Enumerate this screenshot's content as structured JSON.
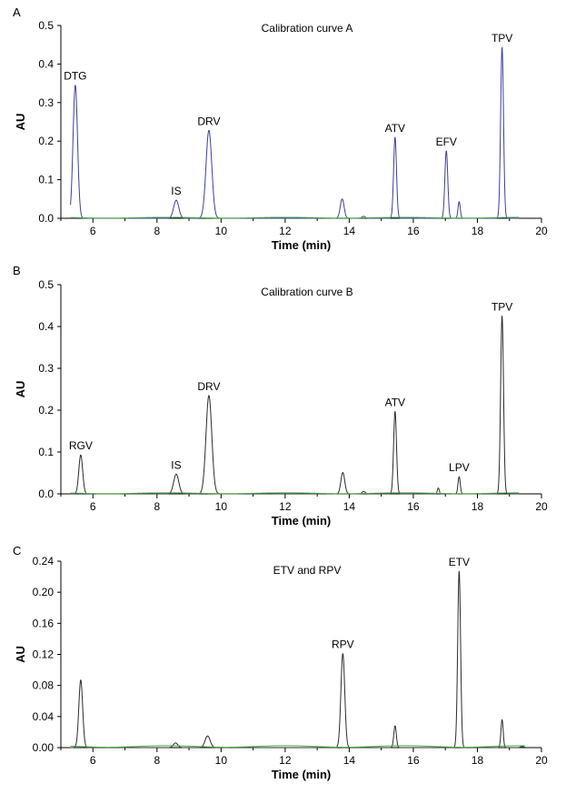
{
  "chart_data": [
    {
      "type": "line",
      "panel": "A",
      "title": "Calibration curve  A",
      "xlabel": "Time (min)",
      "ylabel": "AU",
      "xlim": [
        5,
        20
      ],
      "ylim": [
        0,
        0.5
      ],
      "xticks": [
        6,
        8,
        10,
        12,
        14,
        16,
        18,
        20
      ],
      "yticks": [
        0.0,
        0.1,
        0.2,
        0.3,
        0.4,
        0.5
      ],
      "ytick_labels": [
        "0.0",
        "0.1",
        "0.2",
        "0.3",
        "0.4",
        "0.5"
      ],
      "grid": false,
      "trace_end": 19.3,
      "peaks": [
        {
          "label": "DTG",
          "x": 5.45,
          "y": 0.345,
          "w": 0.07
        },
        {
          "label": "IS",
          "x": 8.6,
          "y": 0.047,
          "w": 0.08
        },
        {
          "label": "DRV",
          "x": 9.62,
          "y": 0.228,
          "w": 0.09
        },
        {
          "label": "",
          "x": 13.78,
          "y": 0.05,
          "w": 0.06
        },
        {
          "label": "",
          "x": 14.45,
          "y": 0.005,
          "w": 0.05
        },
        {
          "label": "ATV",
          "x": 15.43,
          "y": 0.21,
          "w": 0.045
        },
        {
          "label": "EFV",
          "x": 17.03,
          "y": 0.175,
          "w": 0.045
        },
        {
          "label": "",
          "x": 17.43,
          "y": 0.043,
          "w": 0.035
        },
        {
          "label": "TPV",
          "x": 18.77,
          "y": 0.443,
          "w": 0.045
        }
      ],
      "series": [
        {
          "color": "#3d3d9e"
        },
        {
          "color": "#4aa84a",
          "baseline": true
        }
      ]
    },
    {
      "type": "line",
      "panel": "B",
      "title": "Calibration curve  B",
      "xlabel": "Time (min)",
      "ylabel": "AU",
      "xlim": [
        5,
        20
      ],
      "ylim": [
        0,
        0.5
      ],
      "xticks": [
        6,
        8,
        10,
        12,
        14,
        16,
        18,
        20
      ],
      "yticks": [
        0.0,
        0.1,
        0.2,
        0.3,
        0.4,
        0.5
      ],
      "ytick_labels": [
        "0.0",
        "0.1",
        "0.2",
        "0.3",
        "0.4",
        "0.5"
      ],
      "grid": false,
      "trace_end": 19.3,
      "peaks": [
        {
          "label": "RGV",
          "x": 5.62,
          "y": 0.093,
          "w": 0.06
        },
        {
          "label": "IS",
          "x": 8.6,
          "y": 0.047,
          "w": 0.08
        },
        {
          "label": "DRV",
          "x": 9.62,
          "y": 0.235,
          "w": 0.09
        },
        {
          "label": "",
          "x": 13.8,
          "y": 0.051,
          "w": 0.06
        },
        {
          "label": "",
          "x": 14.45,
          "y": 0.006,
          "w": 0.05
        },
        {
          "label": "ATV",
          "x": 15.43,
          "y": 0.197,
          "w": 0.045
        },
        {
          "label": "",
          "x": 16.78,
          "y": 0.014,
          "w": 0.03
        },
        {
          "label": "LPV",
          "x": 17.43,
          "y": 0.041,
          "w": 0.035
        },
        {
          "label": "TPV",
          "x": 18.77,
          "y": 0.425,
          "w": 0.045
        }
      ],
      "series": [
        {
          "color": "#2b2b2b"
        },
        {
          "color": "#4aa84a",
          "baseline": true
        }
      ]
    },
    {
      "type": "line",
      "panel": "C",
      "title": "ETV and RPV",
      "xlabel": "Time (min)",
      "ylabel": "AU",
      "xlim": [
        5,
        20
      ],
      "ylim": [
        0,
        0.24
      ],
      "xticks": [
        6,
        8,
        10,
        12,
        14,
        16,
        18,
        20
      ],
      "yticks": [
        0.0,
        0.04,
        0.08,
        0.12,
        0.16,
        0.2,
        0.24
      ],
      "ytick_labels": [
        "0.00",
        "0.04",
        "0.08",
        "0.12",
        "0.16",
        "0.20",
        "0.24"
      ],
      "grid": false,
      "trace_end": 19.5,
      "peaks": [
        {
          "label": "",
          "x": 5.62,
          "y": 0.087,
          "w": 0.06
        },
        {
          "label": "",
          "x": 8.58,
          "y": 0.006,
          "w": 0.07
        },
        {
          "label": "",
          "x": 9.58,
          "y": 0.015,
          "w": 0.08
        },
        {
          "label": "RPV",
          "x": 13.8,
          "y": 0.121,
          "w": 0.06
        },
        {
          "label": "",
          "x": 15.43,
          "y": 0.028,
          "w": 0.04
        },
        {
          "label": "ETV",
          "x": 17.43,
          "y": 0.227,
          "w": 0.045
        },
        {
          "label": "",
          "x": 18.77,
          "y": 0.036,
          "w": 0.035
        },
        {
          "label": "",
          "x": 19.4,
          "y": 0.0015,
          "w": 0.05
        }
      ],
      "series": [
        {
          "color": "#2b2b2b"
        },
        {
          "color": "#4aa84a",
          "baseline": true
        }
      ]
    }
  ]
}
